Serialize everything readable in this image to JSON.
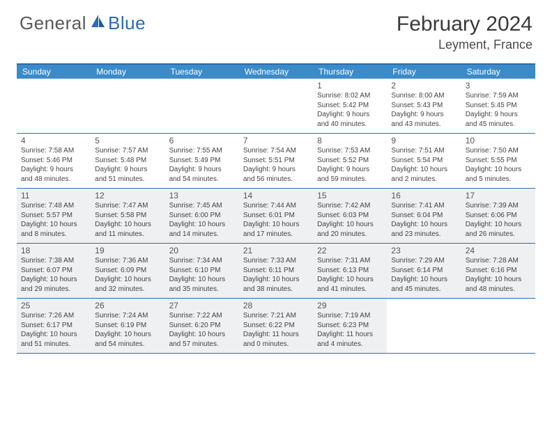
{
  "logo": {
    "text1": "General",
    "text2": "Blue"
  },
  "title": "February 2024",
  "location": "Leyment, France",
  "colors": {
    "header_bg": "#3b8bc9",
    "border": "#2a6cb0",
    "shaded": "#eef0f1",
    "text": "#3a3a3a",
    "logo_gray": "#5a5a5a",
    "logo_blue": "#2a6cb0"
  },
  "day_headers": [
    "Sunday",
    "Monday",
    "Tuesday",
    "Wednesday",
    "Thursday",
    "Friday",
    "Saturday"
  ],
  "cells": [
    {
      "day": "",
      "sunrise": "",
      "sunset": "",
      "daylight1": "",
      "daylight2": ""
    },
    {
      "day": "",
      "sunrise": "",
      "sunset": "",
      "daylight1": "",
      "daylight2": ""
    },
    {
      "day": "",
      "sunrise": "",
      "sunset": "",
      "daylight1": "",
      "daylight2": ""
    },
    {
      "day": "",
      "sunrise": "",
      "sunset": "",
      "daylight1": "",
      "daylight2": ""
    },
    {
      "day": "1",
      "sunrise": "Sunrise: 8:02 AM",
      "sunset": "Sunset: 5:42 PM",
      "daylight1": "Daylight: 9 hours",
      "daylight2": "and 40 minutes."
    },
    {
      "day": "2",
      "sunrise": "Sunrise: 8:00 AM",
      "sunset": "Sunset: 5:43 PM",
      "daylight1": "Daylight: 9 hours",
      "daylight2": "and 43 minutes."
    },
    {
      "day": "3",
      "sunrise": "Sunrise: 7:59 AM",
      "sunset": "Sunset: 5:45 PM",
      "daylight1": "Daylight: 9 hours",
      "daylight2": "and 45 minutes."
    },
    {
      "day": "4",
      "sunrise": "Sunrise: 7:58 AM",
      "sunset": "Sunset: 5:46 PM",
      "daylight1": "Daylight: 9 hours",
      "daylight2": "and 48 minutes."
    },
    {
      "day": "5",
      "sunrise": "Sunrise: 7:57 AM",
      "sunset": "Sunset: 5:48 PM",
      "daylight1": "Daylight: 9 hours",
      "daylight2": "and 51 minutes."
    },
    {
      "day": "6",
      "sunrise": "Sunrise: 7:55 AM",
      "sunset": "Sunset: 5:49 PM",
      "daylight1": "Daylight: 9 hours",
      "daylight2": "and 54 minutes."
    },
    {
      "day": "7",
      "sunrise": "Sunrise: 7:54 AM",
      "sunset": "Sunset: 5:51 PM",
      "daylight1": "Daylight: 9 hours",
      "daylight2": "and 56 minutes."
    },
    {
      "day": "8",
      "sunrise": "Sunrise: 7:53 AM",
      "sunset": "Sunset: 5:52 PM",
      "daylight1": "Daylight: 9 hours",
      "daylight2": "and 59 minutes."
    },
    {
      "day": "9",
      "sunrise": "Sunrise: 7:51 AM",
      "sunset": "Sunset: 5:54 PM",
      "daylight1": "Daylight: 10 hours",
      "daylight2": "and 2 minutes."
    },
    {
      "day": "10",
      "sunrise": "Sunrise: 7:50 AM",
      "sunset": "Sunset: 5:55 PM",
      "daylight1": "Daylight: 10 hours",
      "daylight2": "and 5 minutes."
    },
    {
      "day": "11",
      "sunrise": "Sunrise: 7:48 AM",
      "sunset": "Sunset: 5:57 PM",
      "daylight1": "Daylight: 10 hours",
      "daylight2": "and 8 minutes."
    },
    {
      "day": "12",
      "sunrise": "Sunrise: 7:47 AM",
      "sunset": "Sunset: 5:58 PM",
      "daylight1": "Daylight: 10 hours",
      "daylight2": "and 11 minutes."
    },
    {
      "day": "13",
      "sunrise": "Sunrise: 7:45 AM",
      "sunset": "Sunset: 6:00 PM",
      "daylight1": "Daylight: 10 hours",
      "daylight2": "and 14 minutes."
    },
    {
      "day": "14",
      "sunrise": "Sunrise: 7:44 AM",
      "sunset": "Sunset: 6:01 PM",
      "daylight1": "Daylight: 10 hours",
      "daylight2": "and 17 minutes."
    },
    {
      "day": "15",
      "sunrise": "Sunrise: 7:42 AM",
      "sunset": "Sunset: 6:03 PM",
      "daylight1": "Daylight: 10 hours",
      "daylight2": "and 20 minutes."
    },
    {
      "day": "16",
      "sunrise": "Sunrise: 7:41 AM",
      "sunset": "Sunset: 6:04 PM",
      "daylight1": "Daylight: 10 hours",
      "daylight2": "and 23 minutes."
    },
    {
      "day": "17",
      "sunrise": "Sunrise: 7:39 AM",
      "sunset": "Sunset: 6:06 PM",
      "daylight1": "Daylight: 10 hours",
      "daylight2": "and 26 minutes."
    },
    {
      "day": "18",
      "sunrise": "Sunrise: 7:38 AM",
      "sunset": "Sunset: 6:07 PM",
      "daylight1": "Daylight: 10 hours",
      "daylight2": "and 29 minutes."
    },
    {
      "day": "19",
      "sunrise": "Sunrise: 7:36 AM",
      "sunset": "Sunset: 6:09 PM",
      "daylight1": "Daylight: 10 hours",
      "daylight2": "and 32 minutes."
    },
    {
      "day": "20",
      "sunrise": "Sunrise: 7:34 AM",
      "sunset": "Sunset: 6:10 PM",
      "daylight1": "Daylight: 10 hours",
      "daylight2": "and 35 minutes."
    },
    {
      "day": "21",
      "sunrise": "Sunrise: 7:33 AM",
      "sunset": "Sunset: 6:11 PM",
      "daylight1": "Daylight: 10 hours",
      "daylight2": "and 38 minutes."
    },
    {
      "day": "22",
      "sunrise": "Sunrise: 7:31 AM",
      "sunset": "Sunset: 6:13 PM",
      "daylight1": "Daylight: 10 hours",
      "daylight2": "and 41 minutes."
    },
    {
      "day": "23",
      "sunrise": "Sunrise: 7:29 AM",
      "sunset": "Sunset: 6:14 PM",
      "daylight1": "Daylight: 10 hours",
      "daylight2": "and 45 minutes."
    },
    {
      "day": "24",
      "sunrise": "Sunrise: 7:28 AM",
      "sunset": "Sunset: 6:16 PM",
      "daylight1": "Daylight: 10 hours",
      "daylight2": "and 48 minutes."
    },
    {
      "day": "25",
      "sunrise": "Sunrise: 7:26 AM",
      "sunset": "Sunset: 6:17 PM",
      "daylight1": "Daylight: 10 hours",
      "daylight2": "and 51 minutes."
    },
    {
      "day": "26",
      "sunrise": "Sunrise: 7:24 AM",
      "sunset": "Sunset: 6:19 PM",
      "daylight1": "Daylight: 10 hours",
      "daylight2": "and 54 minutes."
    },
    {
      "day": "27",
      "sunrise": "Sunrise: 7:22 AM",
      "sunset": "Sunset: 6:20 PM",
      "daylight1": "Daylight: 10 hours",
      "daylight2": "and 57 minutes."
    },
    {
      "day": "28",
      "sunrise": "Sunrise: 7:21 AM",
      "sunset": "Sunset: 6:22 PM",
      "daylight1": "Daylight: 11 hours",
      "daylight2": "and 0 minutes."
    },
    {
      "day": "29",
      "sunrise": "Sunrise: 7:19 AM",
      "sunset": "Sunset: 6:23 PM",
      "daylight1": "Daylight: 11 hours",
      "daylight2": "and 4 minutes."
    },
    {
      "day": "",
      "sunrise": "",
      "sunset": "",
      "daylight1": "",
      "daylight2": ""
    },
    {
      "day": "",
      "sunrise": "",
      "sunset": "",
      "daylight1": "",
      "daylight2": ""
    }
  ],
  "shaded_rows": [
    2,
    3,
    4
  ]
}
